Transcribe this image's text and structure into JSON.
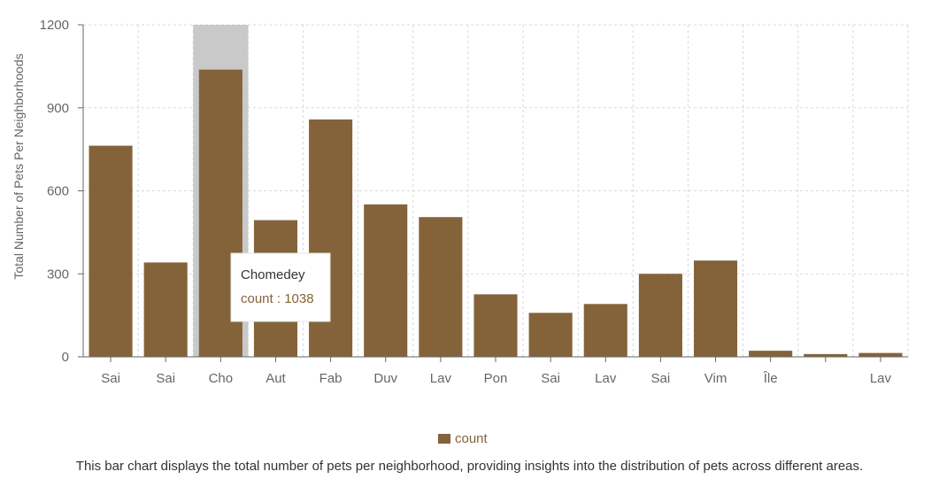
{
  "chart_data": {
    "type": "bar",
    "categories": [
      "Sai",
      "Sai",
      "Cho",
      "Aut",
      "Fab",
      "Duv",
      "Lav",
      "Pon",
      "Sai",
      "Lav",
      "Sai",
      "Vim",
      "Île",
      "",
      "Lav"
    ],
    "series": [
      {
        "name": "count",
        "values": [
          763,
          341,
          1038,
          494,
          858,
          551,
          505,
          226,
          159,
          191,
          300,
          348,
          22,
          10,
          14
        ],
        "color": "#84633a"
      }
    ],
    "xlabel": "",
    "ylabel": "Total Number of Pets Per Neighborhoods",
    "ylim": [
      0,
      1200
    ],
    "yticks": [
      0,
      300,
      600,
      900,
      1200
    ],
    "grid": true,
    "legend": "bottom-center",
    "highlight_index": 2,
    "highlight_color": "#c9c9c9"
  },
  "tooltip": {
    "title": "Chomedey",
    "label": "count",
    "value": "1038"
  },
  "legend": {
    "label": "count"
  },
  "caption": "This bar chart displays the total number of pets per neighborhood, providing insights into the distribution of pets across different areas."
}
